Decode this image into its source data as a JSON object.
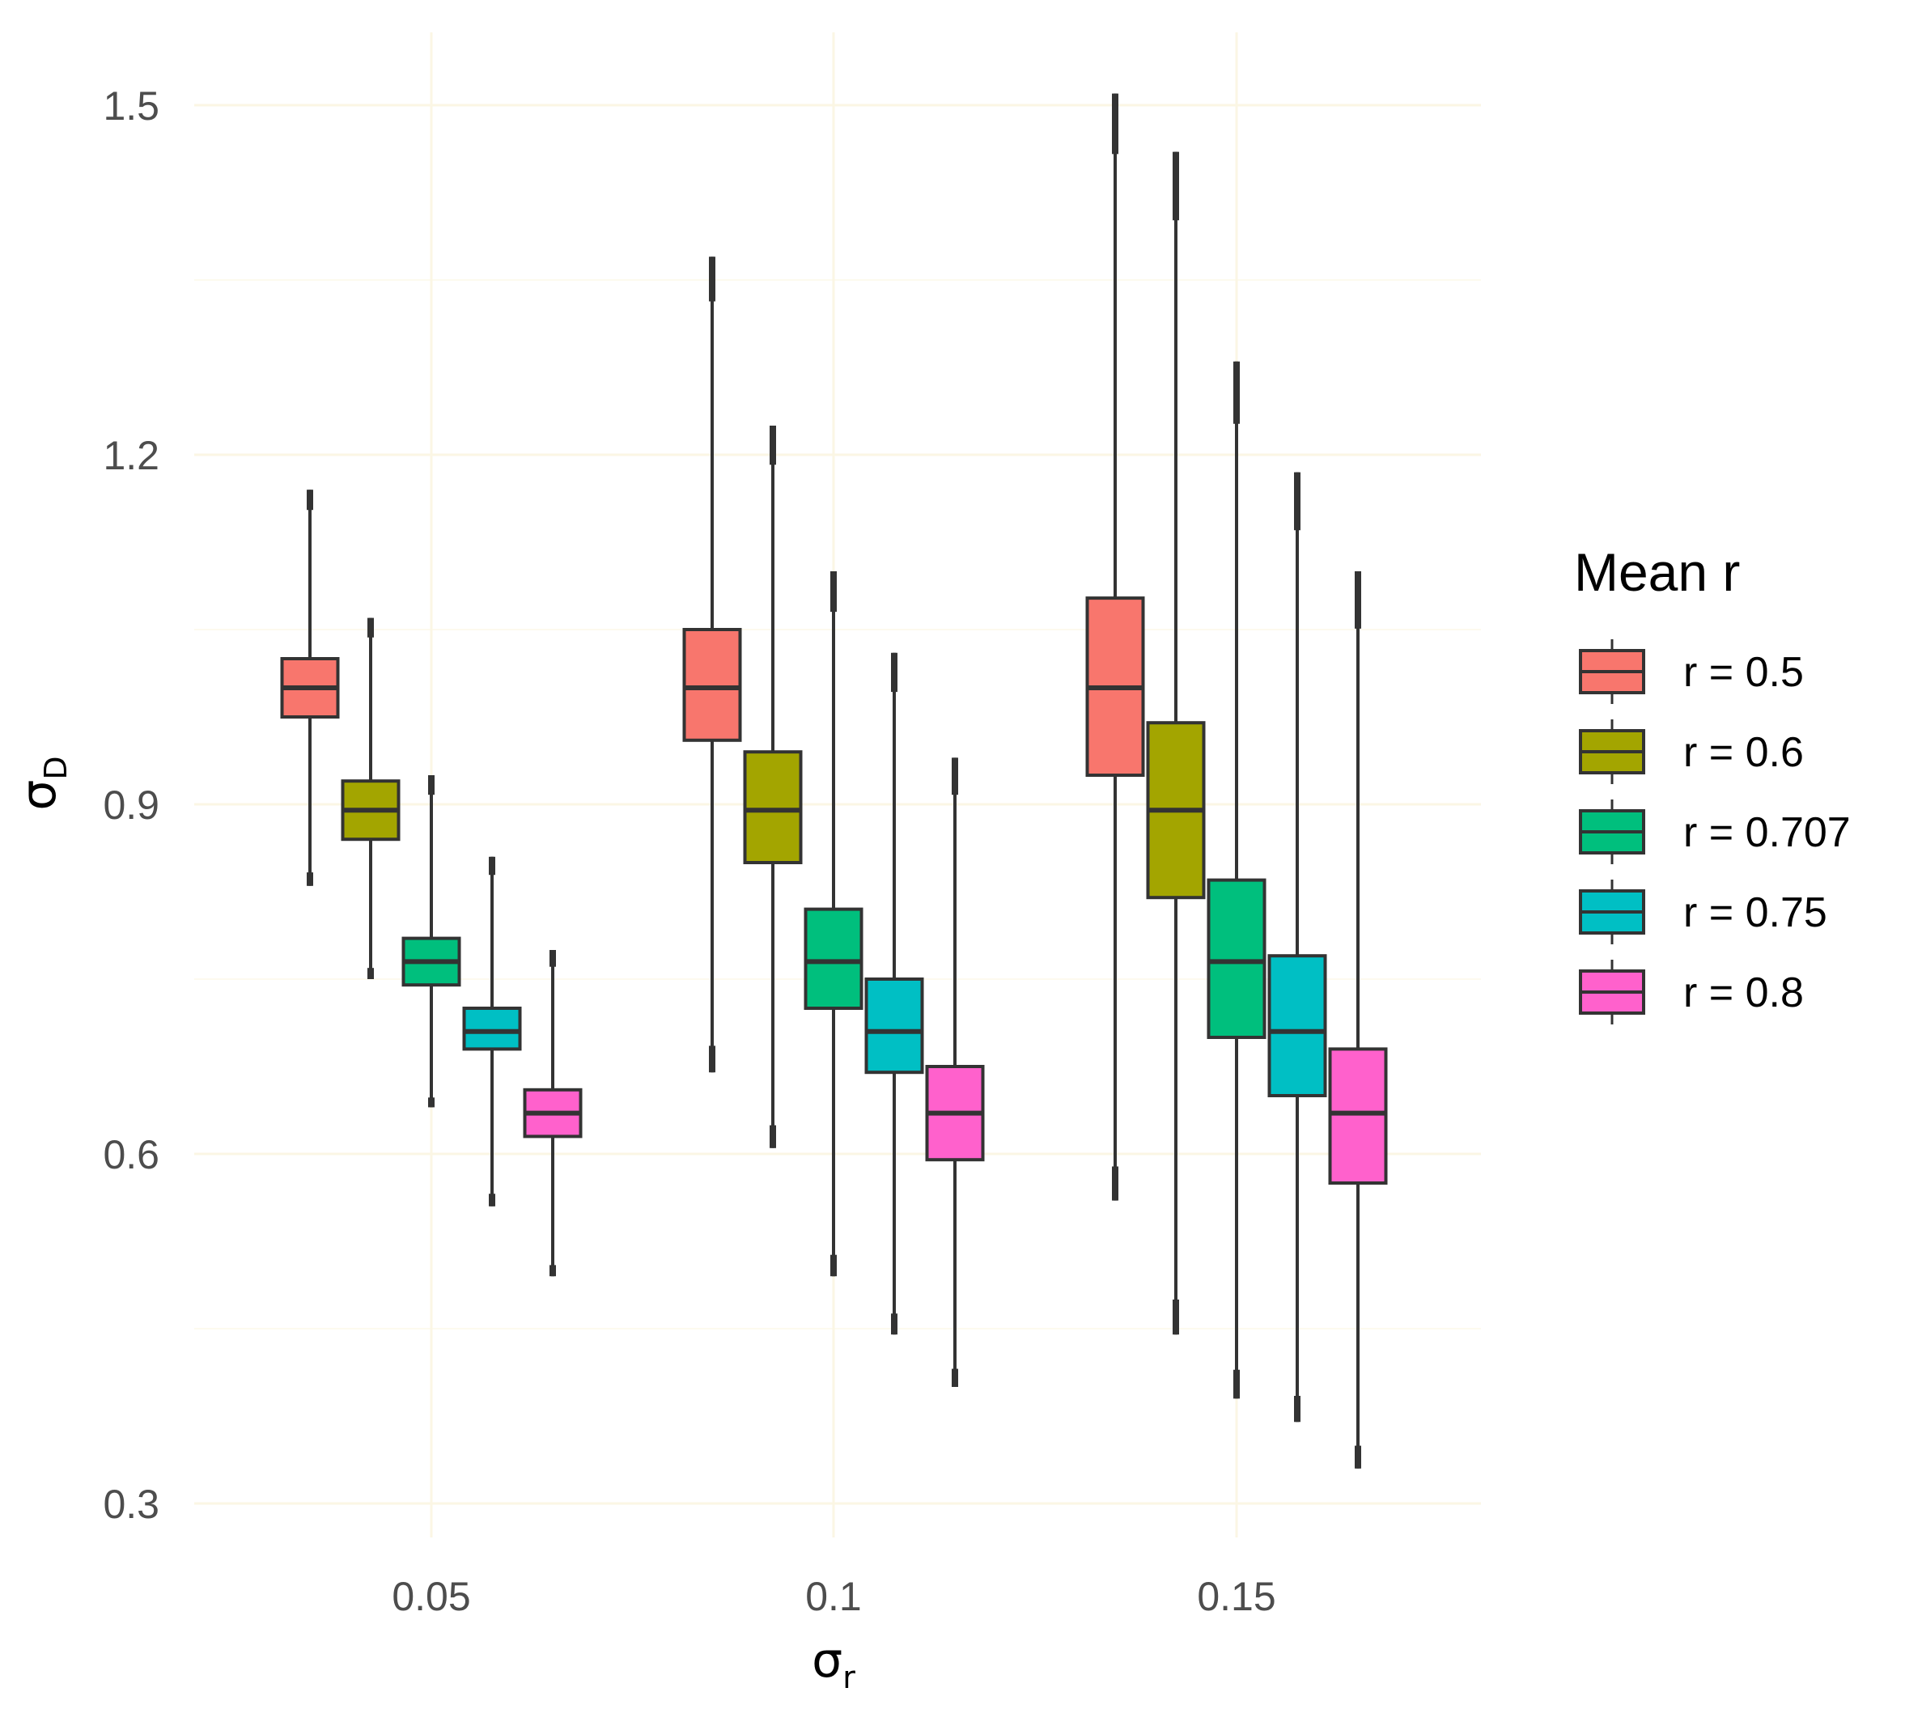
{
  "chart_data": {
    "type": "boxplot",
    "title": "",
    "xlabel": "σ",
    "xlabel_subscript": "r",
    "ylabel": "σ",
    "ylabel_subscript": "D",
    "ylim": [
      0.27,
      1.55
    ],
    "yticks": [
      0.3,
      0.6,
      0.9,
      1.2,
      1.5
    ],
    "ytick_labels": [
      "0.3",
      "0.6",
      "0.9",
      "1.2",
      "1.5"
    ],
    "categories": [
      "0.05",
      "0.1",
      "0.15"
    ],
    "grid": true,
    "legend": {
      "title": "Mean r",
      "position": "right"
    },
    "series": [
      {
        "name": "r = 0.5",
        "color": "#F8766D",
        "boxes": [
          {
            "whisker_low": 0.83,
            "q1": 0.975,
            "median": 1.0,
            "q3": 1.025,
            "whisker_high": 1.17
          },
          {
            "whisker_low": 0.67,
            "q1": 0.955,
            "median": 1.0,
            "q3": 1.05,
            "whisker_high": 1.37
          },
          {
            "whisker_low": 0.56,
            "q1": 0.925,
            "median": 1.0,
            "q3": 1.077,
            "whisker_high": 1.51
          }
        ]
      },
      {
        "name": "r = 0.6",
        "color": "#A3A500",
        "boxes": [
          {
            "whisker_low": 0.75,
            "q1": 0.87,
            "median": 0.895,
            "q3": 0.92,
            "whisker_high": 1.06
          },
          {
            "whisker_low": 0.605,
            "q1": 0.85,
            "median": 0.895,
            "q3": 0.945,
            "whisker_high": 1.225
          },
          {
            "whisker_low": 0.445,
            "q1": 0.82,
            "median": 0.895,
            "q3": 0.97,
            "whisker_high": 1.46
          }
        ]
      },
      {
        "name": "r = 0.707",
        "color": "#00BF7D",
        "boxes": [
          {
            "whisker_low": 0.64,
            "q1": 0.745,
            "median": 0.765,
            "q3": 0.785,
            "whisker_high": 0.925
          },
          {
            "whisker_low": 0.495,
            "q1": 0.725,
            "median": 0.765,
            "q3": 0.81,
            "whisker_high": 1.1
          },
          {
            "whisker_low": 0.39,
            "q1": 0.7,
            "median": 0.765,
            "q3": 0.835,
            "whisker_high": 1.28
          }
        ]
      },
      {
        "name": "r = 0.75",
        "color": "#00BFC4",
        "boxes": [
          {
            "whisker_low": 0.555,
            "q1": 0.69,
            "median": 0.705,
            "q3": 0.725,
            "whisker_high": 0.855
          },
          {
            "whisker_low": 0.445,
            "q1": 0.67,
            "median": 0.705,
            "q3": 0.75,
            "whisker_high": 1.03
          },
          {
            "whisker_low": 0.37,
            "q1": 0.65,
            "median": 0.705,
            "q3": 0.77,
            "whisker_high": 1.185
          }
        ]
      },
      {
        "name": "r = 0.8",
        "color": "#FF61CC",
        "boxes": [
          {
            "whisker_low": 0.495,
            "q1": 0.615,
            "median": 0.635,
            "q3": 0.655,
            "whisker_high": 0.775
          },
          {
            "whisker_low": 0.4,
            "q1": 0.595,
            "median": 0.635,
            "q3": 0.675,
            "whisker_high": 0.94
          },
          {
            "whisker_low": 0.33,
            "q1": 0.575,
            "median": 0.635,
            "q3": 0.69,
            "whisker_high": 1.1
          }
        ]
      }
    ]
  }
}
